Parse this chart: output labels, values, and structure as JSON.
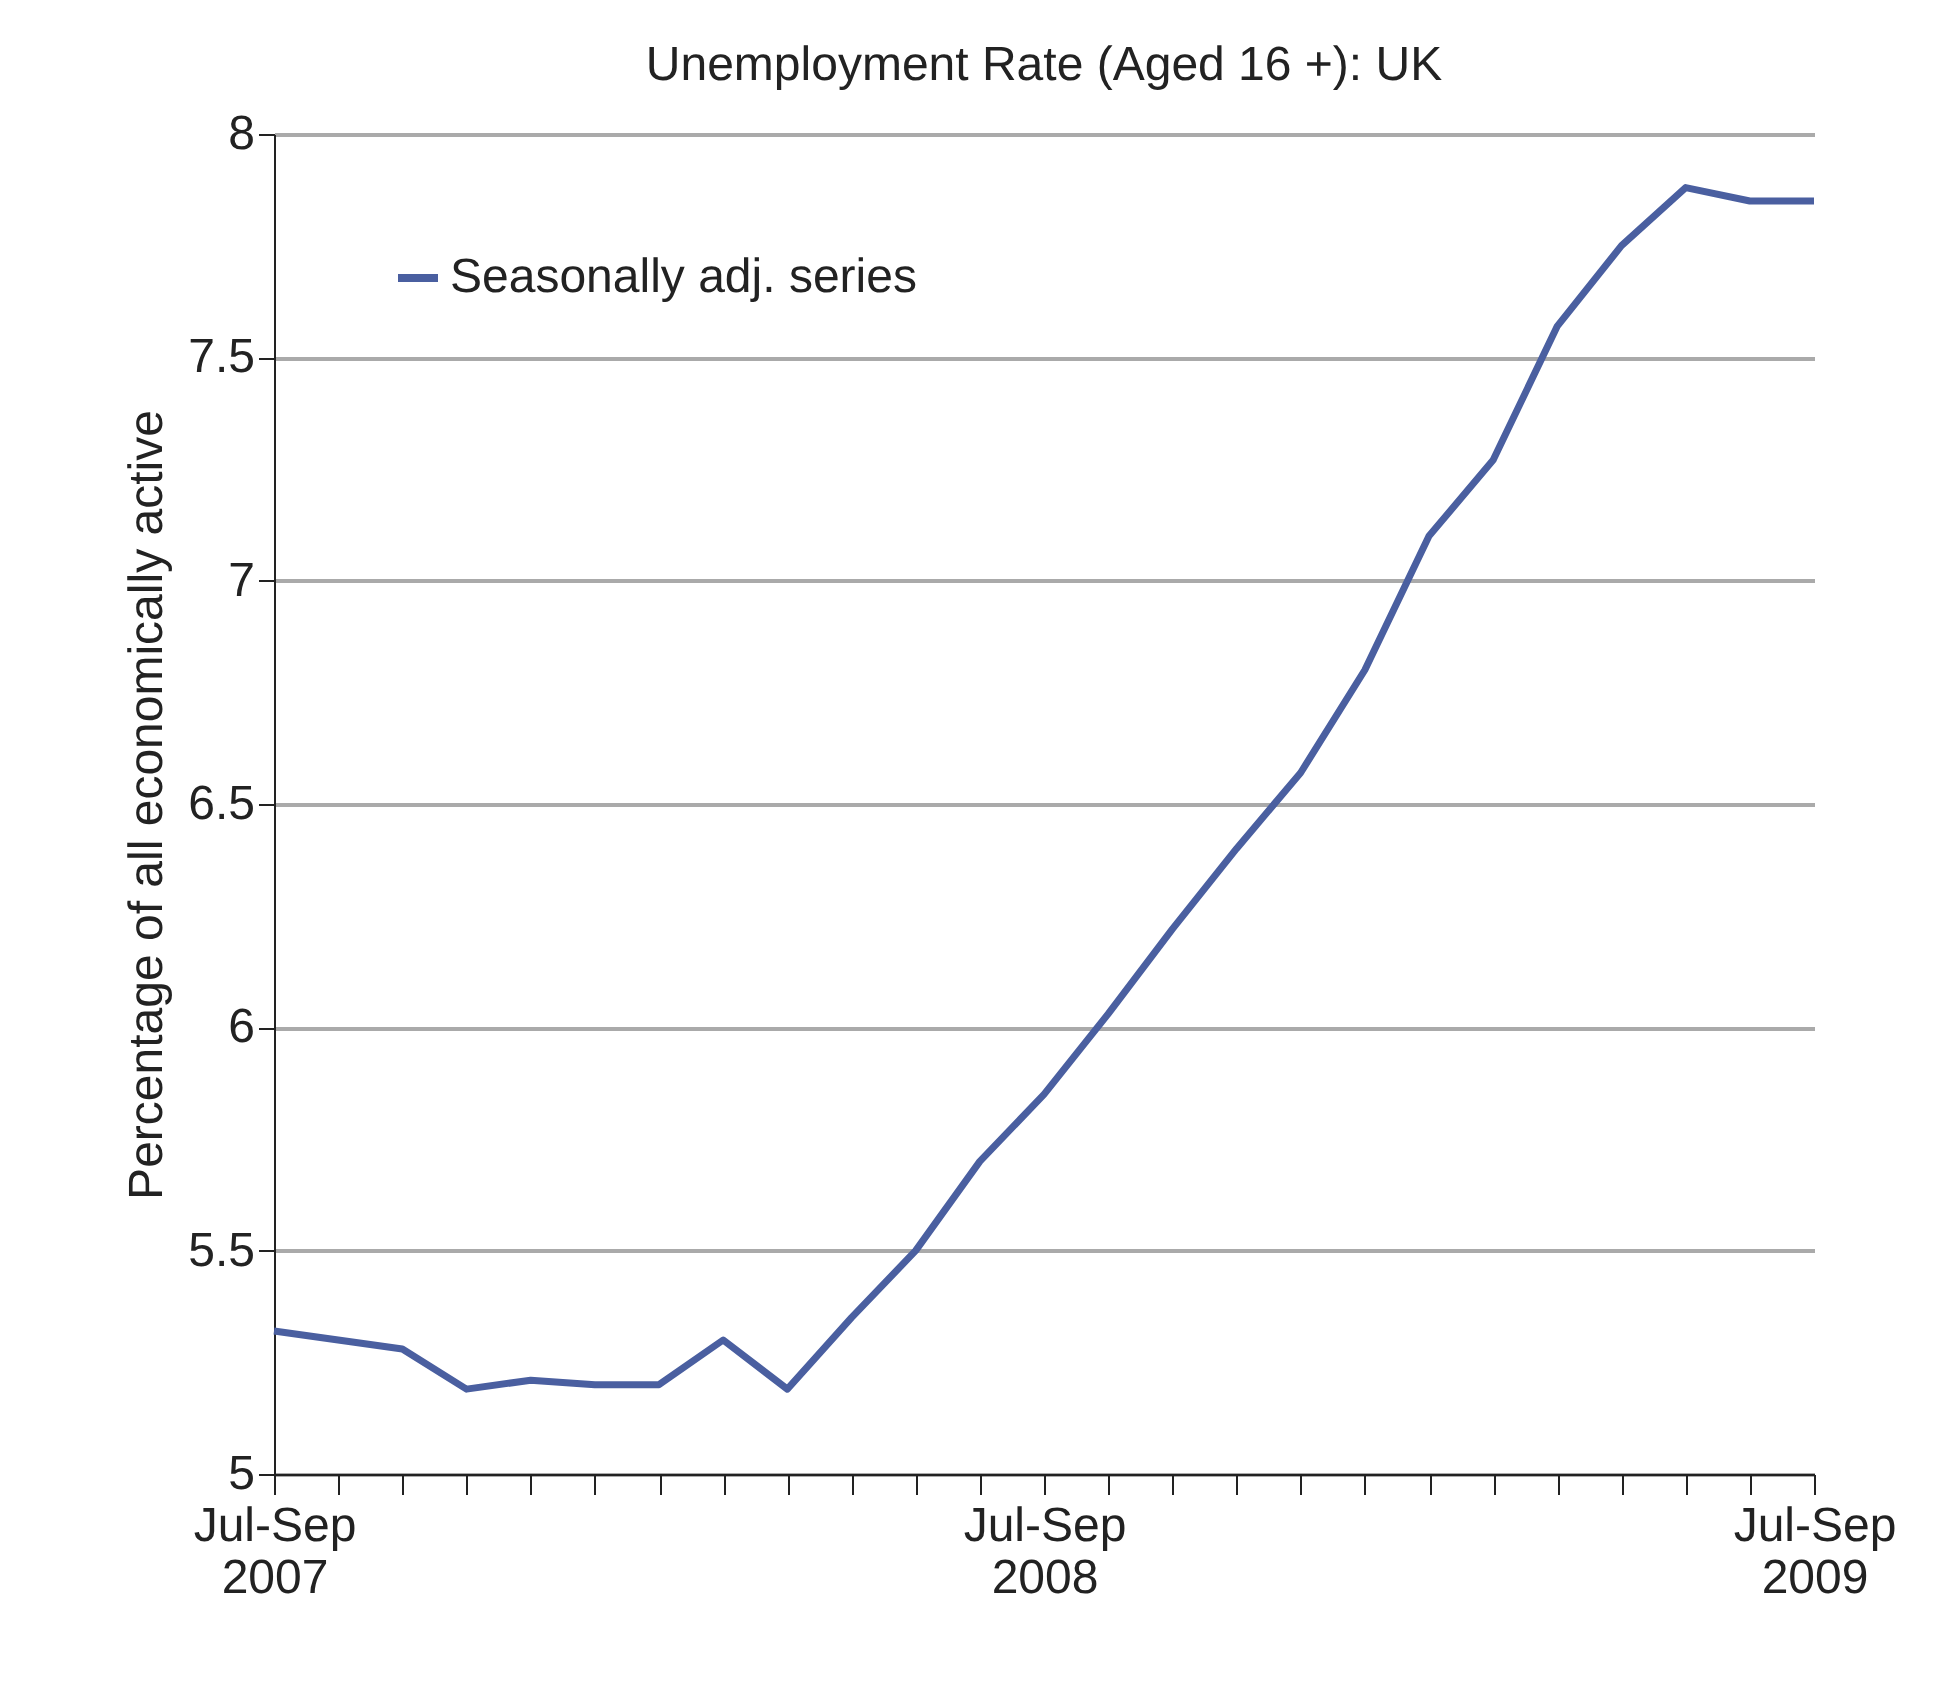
{
  "chart_data": {
    "type": "line",
    "title": "Unemployment Rate (Aged 16 +): UK",
    "ylabel": "Percentage of all economically active",
    "categories": [
      "Jul-Sep 2007",
      null,
      null,
      null,
      null,
      null,
      null,
      null,
      null,
      null,
      null,
      null,
      "Jul-Sep 2008",
      null,
      null,
      null,
      null,
      null,
      null,
      null,
      null,
      null,
      null,
      null,
      "Jul-Sep 2009"
    ],
    "series": [
      {
        "name": "Seasonally adj. series",
        "color": "#4a5fa0",
        "values": [
          5.32,
          5.3,
          5.28,
          5.19,
          5.21,
          5.2,
          5.2,
          5.3,
          5.19,
          5.35,
          5.5,
          5.7,
          5.85,
          6.03,
          6.22,
          6.4,
          6.57,
          6.8,
          7.1,
          7.27,
          7.57,
          7.75,
          7.88,
          7.85,
          7.85
        ]
      }
    ],
    "ylim": [
      5,
      8
    ],
    "yticks": [
      5,
      5.5,
      6,
      6.5,
      7,
      7.5,
      8
    ],
    "grid": "y",
    "legend": "top left",
    "marker": "none",
    "line_style": "solid"
  }
}
